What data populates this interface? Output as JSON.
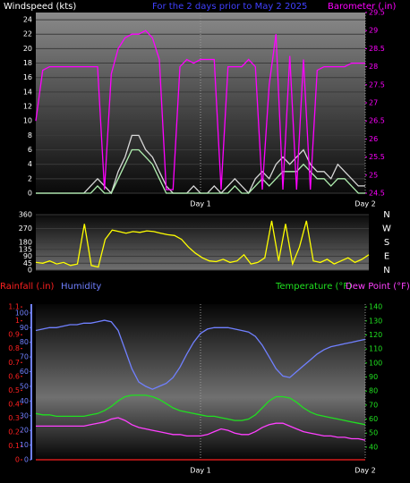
{
  "chart_data": [
    {
      "type": "line",
      "title": "For the 2 days prior to  May 2 2025",
      "y_label": "Windspeed (kts)",
      "y2_label": "Barometer (.in)",
      "x": [
        0,
        1,
        2,
        3,
        4,
        5,
        6,
        7,
        8,
        9,
        10,
        11,
        12,
        13,
        14,
        15,
        16,
        17,
        18,
        19,
        20,
        21,
        22,
        23,
        24,
        25,
        26,
        27,
        28,
        29,
        30,
        31,
        32,
        33,
        34,
        35,
        36,
        37,
        38,
        39,
        40,
        41,
        42,
        43,
        44,
        45,
        46,
        47,
        48
      ],
      "xlim": [
        0,
        48
      ],
      "xticks": [
        {
          "value": 24,
          "label": "Day 1"
        },
        {
          "value": 48,
          "label": "Day 2"
        }
      ],
      "ylim": [
        0,
        25
      ],
      "yticks": [
        0,
        2,
        4,
        6,
        8,
        10,
        12,
        14,
        16,
        18,
        20,
        22,
        24
      ],
      "y2lim": [
        24.5,
        29.5
      ],
      "y2ticks": [
        24.5,
        25,
        25.5,
        26,
        26.5,
        27,
        27.5,
        28,
        28.5,
        29,
        29.5
      ],
      "series": [
        {
          "color": "#d8d8d8",
          "values": [
            0,
            0,
            0,
            0,
            0,
            0,
            0,
            0,
            1,
            2,
            1,
            0,
            3,
            5,
            8,
            8,
            6,
            5,
            3,
            1,
            0,
            0,
            0,
            1,
            0,
            0,
            1,
            0,
            1,
            2,
            1,
            0,
            2,
            3,
            2,
            4,
            5,
            4,
            5,
            6,
            4,
            3,
            3,
            2,
            4,
            3,
            2,
            1,
            1
          ]
        },
        {
          "color": "#b0f0b0",
          "values": [
            0,
            0,
            0,
            0,
            0,
            0,
            0,
            0,
            0,
            1,
            0,
            0,
            2,
            4,
            6,
            6,
            5,
            4,
            2,
            0,
            0,
            0,
            0,
            0,
            0,
            0,
            0,
            0,
            0,
            1,
            0,
            0,
            1,
            2,
            1,
            2,
            3,
            3,
            3,
            4,
            3,
            2,
            2,
            1,
            2,
            2,
            1,
            0,
            0
          ]
        },
        {
          "color": "#ff00ff",
          "axis": "y2",
          "values": [
            26.5,
            27.9,
            28,
            28,
            28,
            28,
            28,
            28,
            28,
            28,
            24.6,
            27.8,
            28.5,
            28.8,
            28.9,
            28.9,
            29,
            28.8,
            28.2,
            24.6,
            24.6,
            28,
            28.2,
            28.1,
            28.2,
            28.2,
            28.2,
            24.6,
            28,
            28,
            28,
            28.2,
            28,
            24.6,
            27.5,
            28.9,
            24.6,
            28.3,
            24.6,
            28.2,
            24.6,
            27.9,
            28,
            28,
            28,
            28,
            28.1,
            28.1,
            28.1
          ]
        }
      ]
    },
    {
      "type": "line",
      "x": [
        0,
        1,
        2,
        3,
        4,
        5,
        6,
        7,
        8,
        9,
        10,
        11,
        12,
        13,
        14,
        15,
        16,
        17,
        18,
        19,
        20,
        21,
        22,
        23,
        24,
        25,
        26,
        27,
        28,
        29,
        30,
        31,
        32,
        33,
        34,
        35,
        36,
        37,
        38,
        39,
        40,
        41,
        42,
        43,
        44,
        45,
        46,
        47,
        48
      ],
      "xlim": [
        0,
        48
      ],
      "ylim": [
        0,
        360
      ],
      "yticks": [
        0,
        45,
        90,
        135,
        180,
        270,
        360
      ],
      "compass_labels": [
        "N",
        "W",
        "S",
        "E",
        "N"
      ],
      "series": [
        {
          "color": "#ffff00",
          "values": [
            50,
            45,
            60,
            40,
            50,
            30,
            40,
            300,
            30,
            20,
            200,
            260,
            250,
            240,
            250,
            245,
            255,
            250,
            240,
            230,
            225,
            200,
            150,
            110,
            80,
            60,
            55,
            70,
            50,
            60,
            100,
            40,
            50,
            80,
            320,
            60,
            300,
            40,
            150,
            320,
            60,
            50,
            70,
            40,
            60,
            80,
            50,
            70,
            100
          ]
        }
      ]
    },
    {
      "type": "line",
      "x": [
        0,
        1,
        2,
        3,
        4,
        5,
        6,
        7,
        8,
        9,
        10,
        11,
        12,
        13,
        14,
        15,
        16,
        17,
        18,
        19,
        20,
        21,
        22,
        23,
        24,
        25,
        26,
        27,
        28,
        29,
        30,
        31,
        32,
        33,
        34,
        35,
        36,
        37,
        38,
        39,
        40,
        41,
        42,
        43,
        44,
        45,
        46,
        47,
        48
      ],
      "xlim": [
        0,
        48
      ],
      "xticks": [
        {
          "value": 24,
          "label": "Day 1"
        },
        {
          "value": 48,
          "label": "Day 2"
        }
      ],
      "ylim": [
        0,
        106
      ],
      "yticks": [
        0,
        10,
        20,
        30,
        40,
        50,
        60,
        70,
        80,
        90,
        100
      ],
      "y2lim": [
        31,
        142
      ],
      "y2ticks": [
        40,
        50,
        60,
        70,
        80,
        90,
        100,
        110,
        120,
        130,
        140
      ],
      "y3lim": [
        0,
        1.12
      ],
      "y3ticks": [
        0,
        0.1,
        0.2,
        0.3,
        0.4,
        0.5,
        0.6,
        0.7,
        0.8,
        0.9,
        1,
        1.1
      ],
      "series": [
        {
          "name": "Rainfall (.in)",
          "color": "#ff2020",
          "axis": "y3",
          "values": [
            0,
            0,
            0,
            0,
            0,
            0,
            0,
            0,
            0,
            0,
            0,
            0,
            0,
            0,
            0,
            0,
            0,
            0,
            0,
            0,
            0,
            0,
            0,
            0,
            0,
            0,
            0,
            0,
            0,
            0,
            0,
            0,
            0,
            0,
            0,
            0,
            0,
            0,
            0,
            0,
            0,
            0,
            0,
            0,
            0,
            0,
            0,
            0,
            0
          ]
        },
        {
          "name": "Humidity",
          "color": "#7080ff",
          "values": [
            88,
            89,
            90,
            90,
            91,
            92,
            92,
            93,
            93,
            94,
            95,
            94,
            88,
            75,
            62,
            53,
            50,
            48,
            50,
            52,
            56,
            63,
            72,
            80,
            86,
            89,
            90,
            90,
            90,
            89,
            88,
            87,
            84,
            78,
            70,
            62,
            57,
            56,
            60,
            64,
            68,
            72,
            75,
            77,
            78,
            79,
            80,
            81,
            82
          ]
        },
        {
          "name": "Temperature (°F)",
          "color": "#20e020",
          "axis": "y2",
          "values": [
            64,
            63,
            63,
            62,
            62,
            62,
            62,
            62,
            63,
            64,
            66,
            69,
            73,
            76,
            77,
            77,
            77,
            76,
            74,
            71,
            68,
            66,
            65,
            64,
            63,
            62,
            62,
            61,
            60,
            59,
            59,
            60,
            63,
            68,
            73,
            76,
            76,
            75,
            72,
            68,
            65,
            63,
            62,
            61,
            60,
            59,
            58,
            57,
            56
          ]
        },
        {
          "name": "Dew Point (°F)",
          "color": "#ff40ff",
          "axis": "y2",
          "values": [
            55,
            55,
            55,
            55,
            55,
            55,
            55,
            55,
            56,
            57,
            58,
            60,
            61,
            59,
            56,
            54,
            53,
            52,
            51,
            50,
            49,
            49,
            48,
            48,
            48,
            49,
            51,
            53,
            52,
            50,
            49,
            49,
            51,
            54,
            56,
            57,
            57,
            55,
            53,
            51,
            50,
            49,
            48,
            48,
            47,
            47,
            46,
            46,
            45
          ]
        }
      ]
    }
  ]
}
